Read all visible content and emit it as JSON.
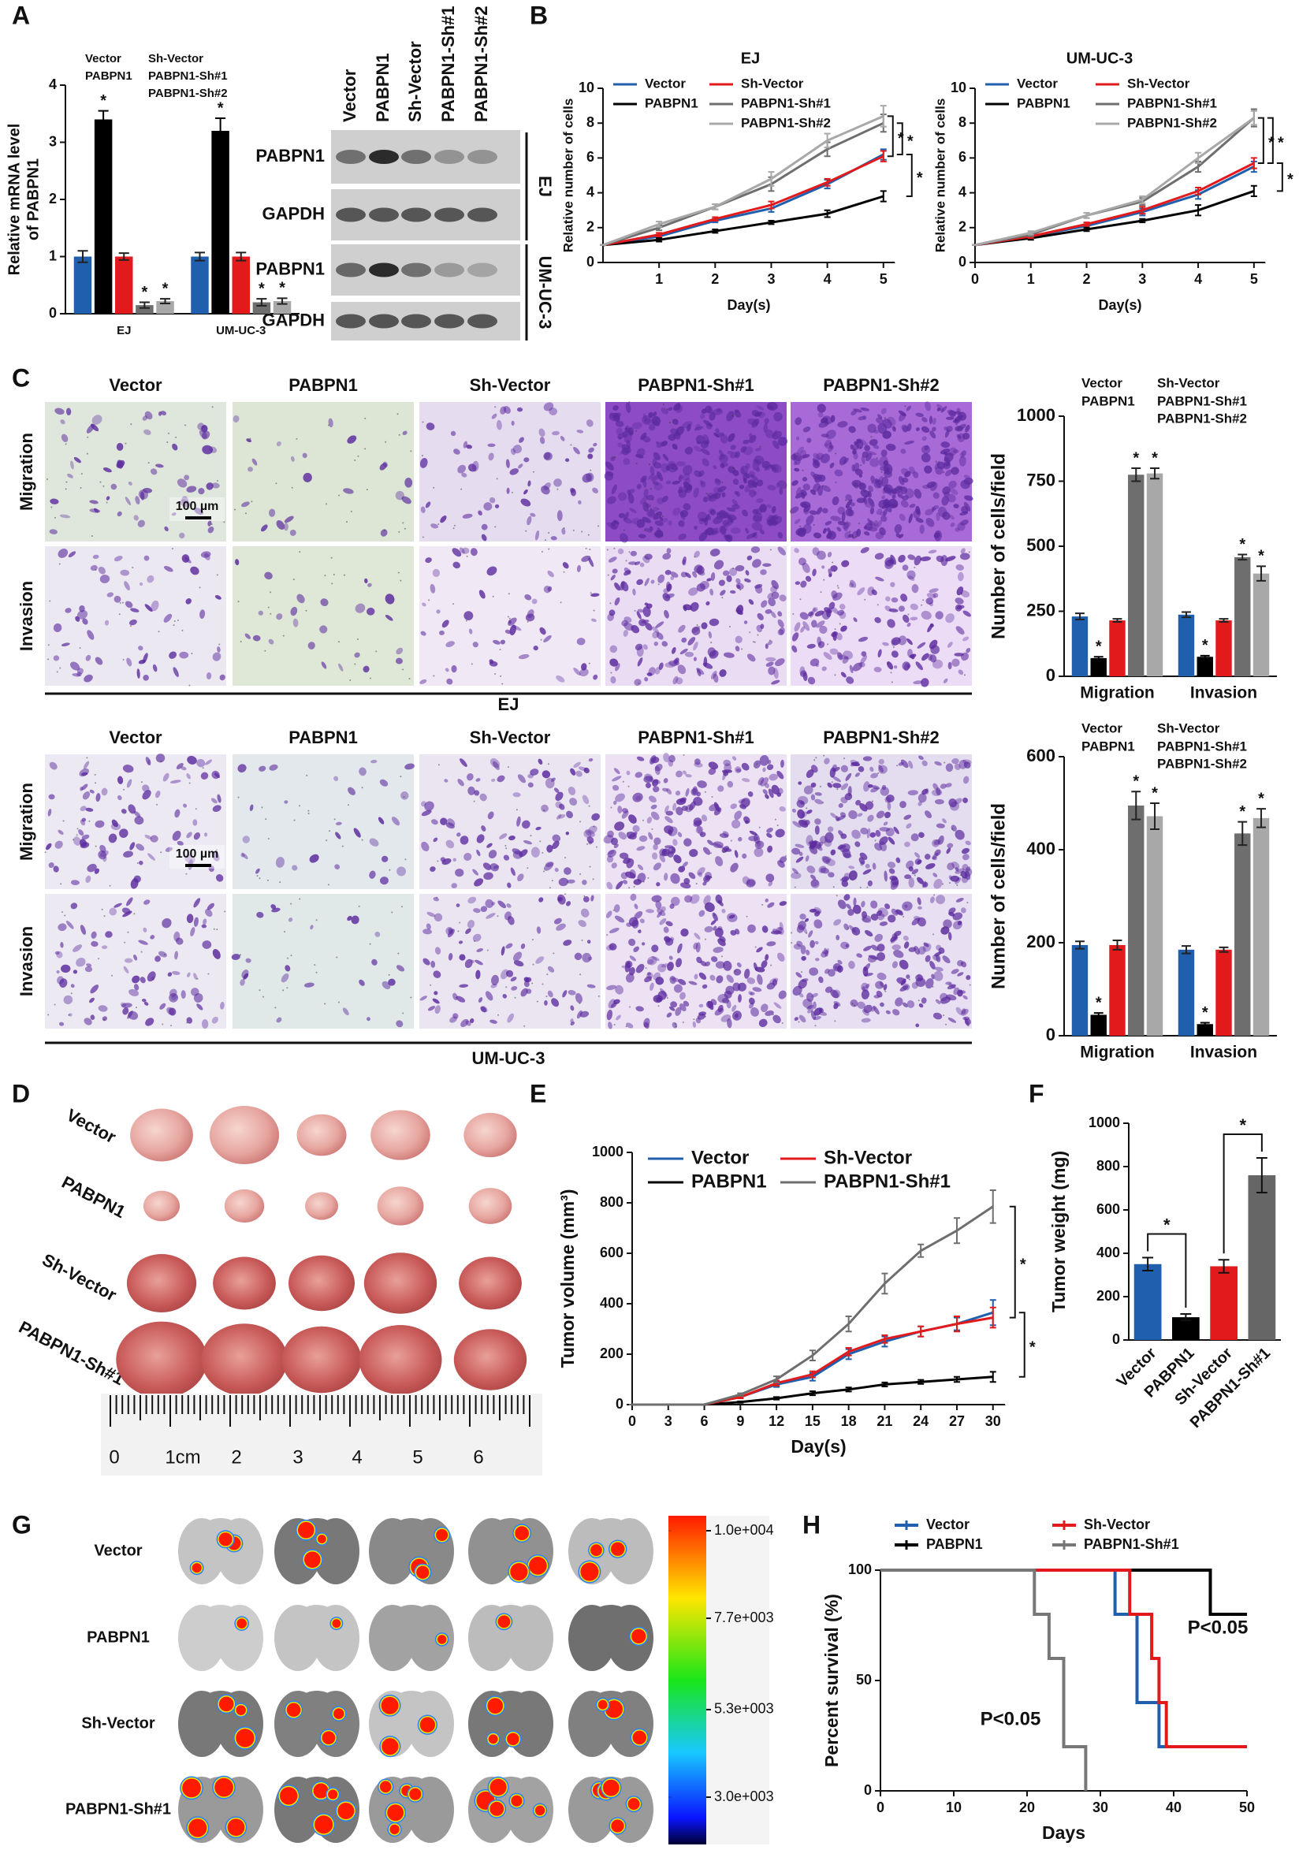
{
  "panel_labels": [
    "A",
    "B",
    "C",
    "D",
    "E",
    "F",
    "G",
    "H"
  ],
  "western_blot": {
    "lanes": [
      "Vector",
      "PABPN1",
      "Sh-Vector",
      "PABPN1-Sh#1",
      "PABPN1-Sh#2"
    ],
    "rows": [
      "PABPN1",
      "GAPDH",
      "PABPN1",
      "GAPDH"
    ],
    "cell_lines": [
      "EJ",
      "UM-UC-3"
    ]
  },
  "transwell": [
    {
      "cell_line": "EJ",
      "groups": [
        "Vector",
        "PABPN1",
        "Sh-Vector",
        "PABPN1-Sh#1",
        "PABPN1-Sh#2"
      ],
      "assays": [
        "Migration",
        "Invasion"
      ],
      "scale_bar": "100 µm"
    },
    {
      "cell_line": "UM-UC-3",
      "groups": [
        "Vector",
        "PABPN1",
        "Sh-Vector",
        "PABPN1-Sh#1",
        "PABPN1-Sh#2"
      ],
      "assays": [
        "Migration",
        "Invasion"
      ],
      "scale_bar": "100 µm"
    }
  ],
  "xenograft_photo": {
    "groups": [
      "Vector",
      "PABPN1",
      "Sh-Vector",
      "PABPN1-Sh#1"
    ],
    "ruler": [
      "0",
      "1cm",
      "2",
      "3",
      "4",
      "5",
      "6"
    ]
  },
  "lung_imaging": {
    "groups": [
      "Vector",
      "PABPN1",
      "Sh-Vector",
      "PABPN1-Sh#1"
    ],
    "colorbar": {
      "clim": [
        3000,
        10000
      ],
      "ticks": [
        {
          "value": 10000,
          "label": "1.0e+004"
        },
        {
          "value": 7700,
          "label": "7.7e+003"
        },
        {
          "value": 5300,
          "label": "5.3e+003"
        },
        {
          "value": 3000,
          "label": "3.0e+003"
        }
      ]
    }
  },
  "chart_data": [
    {
      "type": "bar",
      "ylabel": [
        "Relative mRNA level",
        "of PABPN1"
      ],
      "categories": [
        "EJ",
        "UM-UC-3"
      ],
      "ylim": [
        0,
        4
      ],
      "yticks": [
        0,
        1,
        2,
        3,
        4
      ],
      "series": [
        {
          "name": "Vector",
          "color": "#1f5fad",
          "values": [
            1,
            1
          ],
          "errors": [
            0.1,
            0.07
          ]
        },
        {
          "name": "PABPN1",
          "color": "#000000",
          "values": [
            3.4,
            3.2
          ],
          "errors": [
            0.15,
            0.22
          ],
          "significance": [
            "*",
            "*"
          ]
        },
        {
          "name": "Sh-Vector",
          "color": "#e31a1c",
          "values": [
            1,
            1
          ],
          "errors": [
            0.06,
            0.07
          ]
        },
        {
          "name": "PABPN1-Sh#1",
          "color": "#6e6e6e",
          "values": [
            0.15,
            0.2
          ],
          "errors": [
            0.05,
            0.06
          ],
          "significance": [
            "*",
            "*"
          ]
        },
        {
          "name": "PABPN1-Sh#2",
          "color": "#a8a8a8",
          "values": [
            0.22,
            0.22
          ],
          "errors": [
            0.04,
            0.05
          ],
          "significance": [
            "*",
            "*"
          ]
        }
      ]
    },
    {
      "type": "line",
      "title": "EJ",
      "xlabel": "Day(s)",
      "ylabel": "Relative number of cells",
      "x": [
        0,
        1,
        2,
        3,
        4,
        5
      ],
      "xlim": [
        0,
        5.2
      ],
      "xticks": [
        1,
        2,
        3,
        4,
        5
      ],
      "ylim": [
        0,
        10
      ],
      "yticks": [
        0,
        2,
        4,
        6,
        8,
        10
      ],
      "series": [
        {
          "name": "Vector",
          "color": "#1f5fad",
          "values": [
            1,
            1.5,
            2.4,
            3.1,
            4.5,
            6.2
          ],
          "errors": [
            0,
            0.1,
            0.1,
            0.2,
            0.25,
            0.3
          ]
        },
        {
          "name": "PABPN1",
          "color": "#000000",
          "values": [
            1,
            1.3,
            1.8,
            2.3,
            2.8,
            3.8
          ],
          "errors": [
            0,
            0.1,
            0.1,
            0.1,
            0.2,
            0.3
          ]
        },
        {
          "name": "Sh-Vector",
          "color": "#e31a1c",
          "values": [
            1,
            1.6,
            2.5,
            3.3,
            4.6,
            6.1
          ],
          "errors": [
            0,
            0.1,
            0.1,
            0.2,
            0.2,
            0.3
          ]
        },
        {
          "name": "PABPN1-Sh#1",
          "color": "#6e6e6e",
          "values": [
            1,
            2.0,
            3.2,
            4.5,
            6.5,
            8.0
          ],
          "errors": [
            0,
            0.15,
            0.15,
            0.4,
            0.4,
            0.5
          ]
        },
        {
          "name": "PABPN1-Sh#2",
          "color": "#a8a8a8",
          "values": [
            1,
            2.2,
            3.2,
            4.8,
            7.0,
            8.4
          ],
          "errors": [
            0,
            0.15,
            0.15,
            0.4,
            0.4,
            0.6
          ]
        }
      ],
      "annotations": [
        {
          "text": "*",
          "between": [
            "PABPN1-Sh#2",
            "Sh-Vector"
          ]
        },
        {
          "text": "*",
          "between": [
            "PABPN1-Sh#1",
            "Vector"
          ]
        },
        {
          "text": "*",
          "between": [
            "Vector",
            "PABPN1"
          ]
        }
      ]
    },
    {
      "type": "line",
      "title": "UM-UC-3",
      "xlabel": "Day(s)",
      "ylabel": "Relative number of cells",
      "x": [
        0,
        1,
        2,
        3,
        4,
        5
      ],
      "xlim": [
        0,
        5.2
      ],
      "xticks": [
        0,
        1,
        2,
        3,
        4,
        5
      ],
      "ylim": [
        0,
        10
      ],
      "yticks": [
        0,
        2,
        4,
        6,
        8,
        10
      ],
      "series": [
        {
          "name": "Vector",
          "color": "#1f5fad",
          "values": [
            1,
            1.5,
            2.1,
            2.9,
            3.9,
            5.5
          ],
          "errors": [
            0,
            0.1,
            0.1,
            0.2,
            0.25,
            0.3
          ]
        },
        {
          "name": "PABPN1",
          "color": "#000000",
          "values": [
            1,
            1.4,
            1.9,
            2.4,
            3.0,
            4.1
          ],
          "errors": [
            0,
            0.1,
            0.1,
            0.1,
            0.3,
            0.3
          ]
        },
        {
          "name": "Sh-Vector",
          "color": "#e31a1c",
          "values": [
            1,
            1.5,
            2.2,
            3.0,
            4.1,
            5.7
          ],
          "errors": [
            0,
            0.1,
            0.1,
            0.2,
            0.2,
            0.3
          ]
        },
        {
          "name": "PABPN1-Sh#1",
          "color": "#6e6e6e",
          "values": [
            1,
            1.6,
            2.7,
            3.5,
            5.5,
            8.3
          ],
          "errors": [
            0,
            0.1,
            0.15,
            0.2,
            0.3,
            0.5
          ]
        },
        {
          "name": "PABPN1-Sh#2",
          "color": "#a8a8a8",
          "values": [
            1,
            1.7,
            2.7,
            3.6,
            6.0,
            8.3
          ],
          "errors": [
            0,
            0.1,
            0.15,
            0.2,
            0.3,
            0.4
          ]
        }
      ],
      "annotations": [
        {
          "text": "*",
          "between": [
            "PABPN1-Sh#1",
            "Sh-Vector"
          ]
        },
        {
          "text": "*",
          "between": [
            "PABPN1-Sh#2",
            "Sh-Vector"
          ]
        },
        {
          "text": "*",
          "between": [
            "Sh-Vector",
            "PABPN1"
          ]
        }
      ]
    },
    {
      "type": "bar",
      "ylabel": "Number of cells/field",
      "categories": [
        "Migration",
        "Invasion"
      ],
      "ylim": [
        0,
        1000
      ],
      "yticks": [
        0,
        250,
        500,
        750,
        1000
      ],
      "series": [
        {
          "name": "Vector",
          "color": "#1f5fad",
          "values": [
            230,
            237
          ],
          "errors": [
            12,
            10
          ]
        },
        {
          "name": "PABPN1",
          "color": "#000000",
          "values": [
            70,
            75
          ],
          "errors": [
            5,
            4
          ],
          "significance": [
            "*",
            "*"
          ]
        },
        {
          "name": "Sh-Vector",
          "color": "#e31a1c",
          "values": [
            215,
            215
          ],
          "errors": [
            6,
            6
          ]
        },
        {
          "name": "PABPN1-Sh#1",
          "color": "#6e6e6e",
          "values": [
            775,
            458
          ],
          "errors": [
            25,
            10
          ],
          "significance": [
            "*",
            "*"
          ]
        },
        {
          "name": "PABPN1-Sh#2",
          "color": "#a8a8a8",
          "values": [
            780,
            395
          ],
          "errors": [
            20,
            28
          ],
          "significance": [
            "*",
            "*"
          ]
        }
      ]
    },
    {
      "type": "bar",
      "ylabel": "Number of cells/field",
      "categories": [
        "Migration",
        "Invasion"
      ],
      "ylim": [
        0,
        600
      ],
      "yticks": [
        0,
        200,
        400,
        600
      ],
      "series": [
        {
          "name": "Vector",
          "color": "#1f5fad",
          "values": [
            195,
            185
          ],
          "errors": [
            8,
            8
          ]
        },
        {
          "name": "PABPN1",
          "color": "#000000",
          "values": [
            45,
            25
          ],
          "errors": [
            4,
            3
          ],
          "significance": [
            "*",
            "*"
          ]
        },
        {
          "name": "Sh-Vector",
          "color": "#e31a1c",
          "values": [
            195,
            185
          ],
          "errors": [
            10,
            5
          ]
        },
        {
          "name": "PABPN1-Sh#1",
          "color": "#6e6e6e",
          "values": [
            495,
            435
          ],
          "errors": [
            30,
            25
          ],
          "significance": [
            "*",
            "*"
          ]
        },
        {
          "name": "PABPN1-Sh#2",
          "color": "#a8a8a8",
          "values": [
            472,
            468
          ],
          "errors": [
            28,
            20
          ],
          "significance": [
            "*",
            "*"
          ]
        }
      ]
    },
    {
      "type": "line",
      "xlabel": "Day(s)",
      "ylabel": "Tumor volume (mm³)",
      "x": [
        0,
        3,
        6,
        9,
        12,
        15,
        18,
        21,
        24,
        27,
        30
      ],
      "xlim": [
        0,
        31
      ],
      "xticks": [
        0,
        3,
        6,
        9,
        12,
        15,
        18,
        21,
        24,
        27,
        30
      ],
      "ylim": [
        0,
        1000
      ],
      "yticks": [
        0,
        200,
        400,
        600,
        800,
        1000
      ],
      "series": [
        {
          "name": "Vector",
          "color": "#1f5fad",
          "values": [
            0,
            0,
            0,
            30,
            80,
            110,
            200,
            250,
            290,
            320,
            365
          ],
          "errors": [
            0,
            0,
            0,
            5,
            10,
            15,
            20,
            20,
            20,
            25,
            50
          ]
        },
        {
          "name": "PABPN1",
          "color": "#000000",
          "values": [
            0,
            0,
            0,
            10,
            25,
            45,
            60,
            80,
            90,
            100,
            110
          ],
          "errors": [
            0,
            0,
            0,
            3,
            5,
            8,
            8,
            8,
            8,
            10,
            20
          ]
        },
        {
          "name": "Sh-Vector",
          "color": "#e31a1c",
          "values": [
            0,
            0,
            0,
            30,
            85,
            120,
            210,
            260,
            290,
            320,
            345
          ],
          "errors": [
            0,
            0,
            0,
            5,
            10,
            12,
            15,
            15,
            20,
            30,
            40
          ]
        },
        {
          "name": "PABPN1-Sh#1",
          "color": "#6e6e6e",
          "values": [
            0,
            0,
            0,
            40,
            100,
            195,
            320,
            480,
            610,
            690,
            785
          ],
          "errors": [
            0,
            0,
            0,
            5,
            12,
            20,
            30,
            40,
            25,
            50,
            65
          ]
        }
      ],
      "annotations": [
        {
          "text": "*",
          "between": [
            "PABPN1-Sh#1",
            "Sh-Vector"
          ]
        },
        {
          "text": "*",
          "between": [
            "Vector",
            "PABPN1"
          ]
        }
      ]
    },
    {
      "type": "bar",
      "ylabel": "Tumor weight (mg)",
      "categories": [
        "Vector",
        "PABPN1",
        "Sh-Vector",
        "PABPN1-Sh#1"
      ],
      "values": [
        350,
        105,
        340,
        760
      ],
      "errors": [
        30,
        15,
        30,
        80
      ],
      "colors": [
        "#1f5fad",
        "#000000",
        "#e31a1c",
        "#666666"
      ],
      "ylim": [
        0,
        1000
      ],
      "yticks": [
        0,
        200,
        400,
        600,
        800,
        1000
      ],
      "annotations": [
        {
          "text": "*",
          "between": [
            "Vector",
            "PABPN1"
          ]
        },
        {
          "text": "*",
          "between": [
            "Sh-Vector",
            "PABPN1-Sh#1"
          ]
        }
      ]
    },
    {
      "type": "step",
      "xlabel": "Days",
      "ylabel": "Percent survival (%)",
      "xlim": [
        0,
        50
      ],
      "xticks": [
        0,
        10,
        20,
        30,
        40,
        50
      ],
      "ylim": [
        0,
        100
      ],
      "yticks": [
        0,
        50,
        100
      ],
      "series": [
        {
          "name": "Vector",
          "color": "#1f5fad",
          "x": [
            0,
            32,
            35,
            38,
            50
          ],
          "values": [
            100,
            80,
            40,
            20,
            20
          ]
        },
        {
          "name": "PABPN1",
          "color": "#000000",
          "x": [
            0,
            45,
            50
          ],
          "values": [
            100,
            80,
            80
          ]
        },
        {
          "name": "Sh-Vector",
          "color": "#e31a1c",
          "x": [
            0,
            34,
            37,
            38,
            39,
            50
          ],
          "values": [
            100,
            80,
            60,
            40,
            20,
            20
          ]
        },
        {
          "name": "PABPN1-Sh#1",
          "color": "#777777",
          "x": [
            0,
            21,
            23,
            25,
            28
          ],
          "values": [
            100,
            80,
            60,
            20,
            0
          ]
        }
      ],
      "annotations": [
        {
          "text": "P<0.05",
          "series": "PABPN1"
        },
        {
          "text": "P<0.05",
          "series": "PABPN1-Sh#1"
        }
      ]
    }
  ]
}
